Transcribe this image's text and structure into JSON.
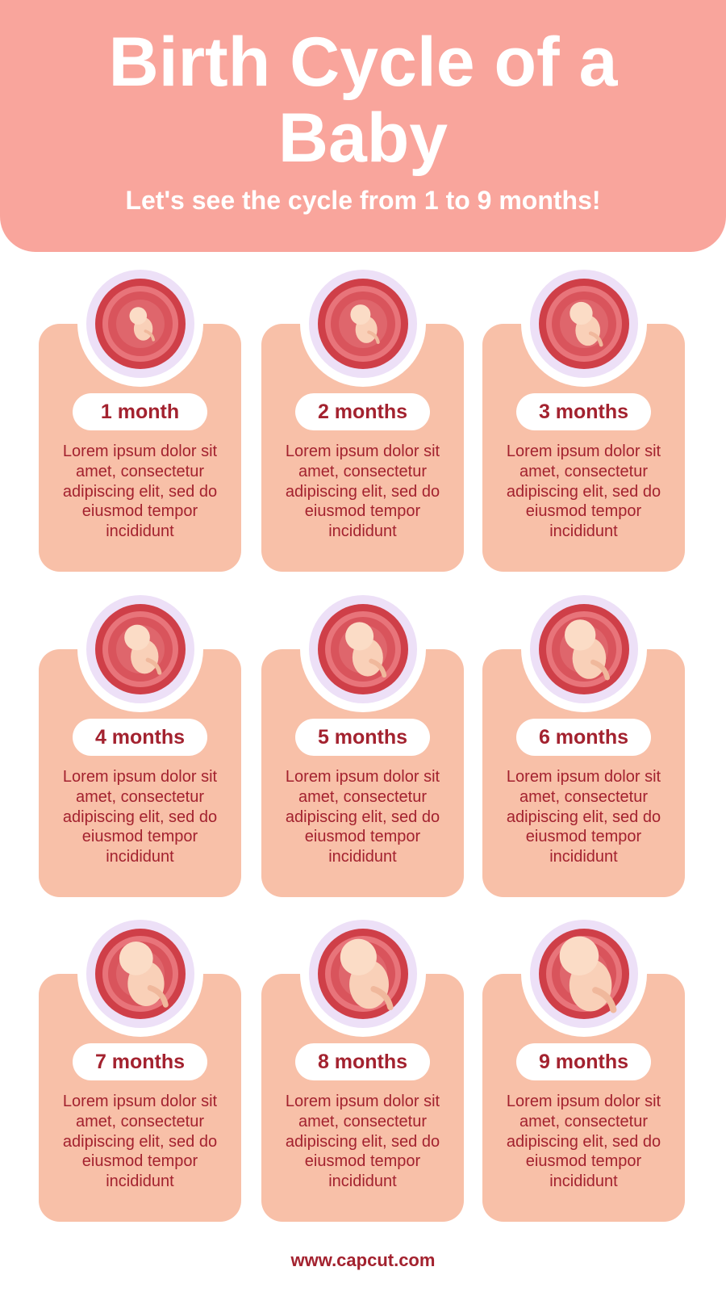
{
  "header": {
    "title": "Birth Cycle of a Baby",
    "subtitle": "Let's see the cycle from 1 to 9 months!"
  },
  "cards": [
    {
      "label": "1 month",
      "text": "Lorem ipsum dolor sit amet, consectetur adipiscing elit, sed do eiusmod tempor incididunt"
    },
    {
      "label": "2 months",
      "text": "Lorem ipsum dolor sit amet, consectetur adipiscing elit, sed do eiusmod tempor incididunt"
    },
    {
      "label": "3 months",
      "text": "Lorem ipsum dolor sit amet, consectetur adipiscing elit, sed do eiusmod tempor incididunt"
    },
    {
      "label": "4 months",
      "text": "Lorem ipsum dolor sit amet, consectetur adipiscing elit, sed do eiusmod tempor incididunt"
    },
    {
      "label": "5 months",
      "text": "Lorem ipsum dolor sit amet, consectetur adipiscing elit, sed do eiusmod tempor incididunt"
    },
    {
      "label": "6 months",
      "text": "Lorem ipsum dolor sit amet, consectetur adipiscing elit, sed do eiusmod tempor incididunt"
    },
    {
      "label": "7 months",
      "text": "Lorem ipsum dolor sit amet, consectetur adipiscing elit, sed do eiusmod tempor incididunt"
    },
    {
      "label": "8 months",
      "text": "Lorem ipsum dolor sit amet, consectetur adipiscing elit, sed do eiusmod tempor incididunt"
    },
    {
      "label": "9 months",
      "text": "Lorem ipsum dolor sit amet, consectetur adipiscing elit, sed do eiusmod tempor incididunt"
    }
  ],
  "footer": {
    "url": "www.capcut.com"
  }
}
